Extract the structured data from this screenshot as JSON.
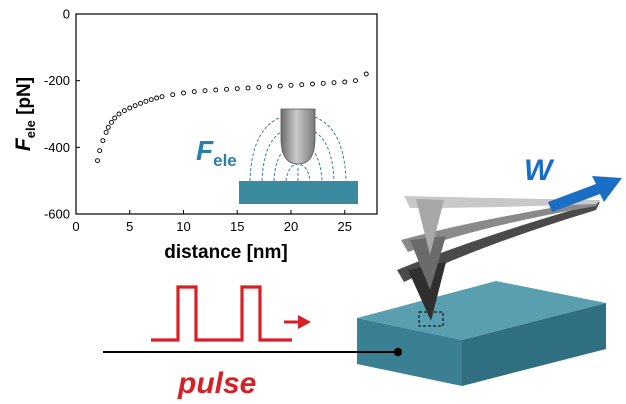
{
  "chart_data": {
    "type": "scatter",
    "title": "",
    "xlabel": "distance [nm]",
    "ylabel_main": "F",
    "ylabel_sub": "ele",
    "ylabel_unit": " [pN]",
    "xlim": [
      0,
      28
    ],
    "ylim": [
      -600,
      0
    ],
    "xticks": [
      0,
      5,
      10,
      15,
      20,
      25
    ],
    "yticks": [
      0,
      -200,
      -400,
      -600
    ],
    "grid": false,
    "series": [
      {
        "marker": "open-circle",
        "x": [
          2.0,
          2.2,
          2.5,
          2.8,
          3.0,
          3.3,
          3.6,
          4.0,
          4.5,
          5.0,
          5.5,
          6.0,
          6.5,
          7.0,
          7.5,
          8.0,
          9.0,
          10.0,
          11.0,
          12.0,
          13.0,
          14.0,
          15.0,
          16.0,
          17.0,
          18.0,
          19.0,
          20.0,
          21.0,
          22.0,
          23.0,
          24.0,
          25.0,
          26.0,
          27.0
        ],
        "y": [
          -440,
          -410,
          -380,
          -355,
          -340,
          -325,
          -312,
          -300,
          -290,
          -282,
          -275,
          -268,
          -262,
          -257,
          -252,
          -248,
          -242,
          -237,
          -233,
          -230,
          -228,
          -226,
          -224,
          -222,
          -220,
          -218,
          -216,
          -214,
          -212,
          -210,
          -208,
          -206,
          -204,
          -200,
          -180
        ]
      }
    ]
  },
  "inset": {
    "label_main": "F",
    "label_sub": "ele",
    "color": "#2a7fa6"
  },
  "pulse": {
    "label": "pulse",
    "color": "#d71f26"
  },
  "cantilever": {
    "label": "W",
    "color": "#1a6fc4"
  },
  "colors": {
    "substrate_top": "#5a9fb0",
    "substrate_front": "#3a7f92",
    "substrate_side": "#2f6f81"
  }
}
